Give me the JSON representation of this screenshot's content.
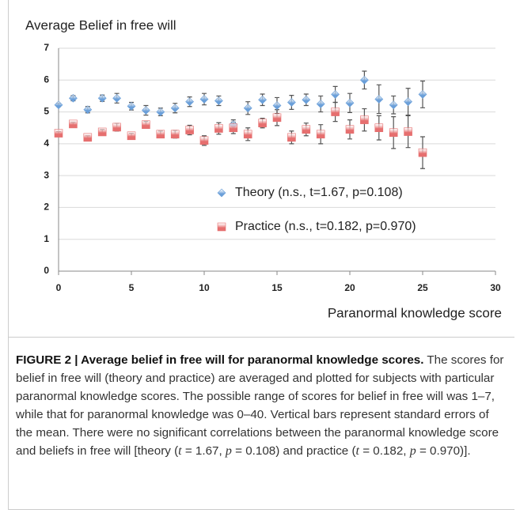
{
  "chart_data": {
    "type": "scatter",
    "ylabel": "Average Belief in free will",
    "xlabel": "Paranormal knowledge score",
    "x": [
      0,
      1,
      2,
      3,
      4,
      5,
      6,
      7,
      8,
      9,
      10,
      11,
      12,
      13,
      14,
      15,
      16,
      17,
      18,
      19,
      20,
      21,
      22,
      23,
      24,
      25
    ],
    "series": [
      {
        "name": "Theory (n.s., t=1.67, p=0.108)",
        "color": "#6a9fd9",
        "marker": "diamond",
        "values": [
          5.22,
          5.43,
          5.07,
          5.43,
          5.43,
          5.18,
          5.05,
          5.0,
          5.12,
          5.32,
          5.4,
          5.35,
          4.6,
          5.12,
          5.38,
          5.2,
          5.3,
          5.38,
          5.25,
          5.55,
          5.28,
          6.0,
          5.4,
          5.22,
          5.32,
          5.55
        ],
        "errors": [
          0.05,
          0.08,
          0.1,
          0.1,
          0.15,
          0.12,
          0.15,
          0.12,
          0.15,
          0.15,
          0.18,
          0.15,
          0.15,
          0.2,
          0.18,
          0.25,
          0.22,
          0.18,
          0.25,
          0.25,
          0.3,
          0.28,
          0.45,
          0.28,
          0.42,
          0.42
        ]
      },
      {
        "name": "Practice (n.s., t=0.182, p=0.970)",
        "color": "#e66f6f",
        "marker": "square",
        "values": [
          4.33,
          4.62,
          4.2,
          4.37,
          4.52,
          4.25,
          4.6,
          4.3,
          4.3,
          4.43,
          4.1,
          4.48,
          4.5,
          4.3,
          4.65,
          4.82,
          4.2,
          4.45,
          4.3,
          5.0,
          4.45,
          4.75,
          4.5,
          4.35,
          4.38,
          3.72
        ],
        "errors": [
          0.05,
          0.05,
          0.05,
          0.08,
          0.12,
          0.08,
          0.1,
          0.1,
          0.12,
          0.15,
          0.15,
          0.18,
          0.18,
          0.2,
          0.15,
          0.25,
          0.2,
          0.2,
          0.3,
          0.3,
          0.3,
          0.35,
          0.38,
          0.5,
          0.5,
          0.5
        ]
      }
    ],
    "xlim": [
      0,
      30
    ],
    "xticks": [
      0,
      5,
      10,
      15,
      20,
      25,
      30
    ],
    "ylim": [
      0,
      7
    ],
    "yticks": [
      0,
      1,
      2,
      3,
      4,
      5,
      6,
      7
    ],
    "grid": true
  },
  "caption": {
    "segments": [
      {
        "text": "FIGURE 2 | Average belief in free will for paranormal knowledge scores.",
        "style": "bold"
      },
      {
        "text": " The scores for belief in free will (theory and practice) are averaged and plotted for subjects with particular paranormal knowledge scores. The possible range of scores for belief in free will was 1–7, while that for paranormal knowledge was 0–40. Vertical bars represent standard errors of the mean. There were no significant correlations between the paranormal knowledge score and beliefs in free will [theory (",
        "style": "normal"
      },
      {
        "text": "t",
        "style": "italic"
      },
      {
        "text": " = 1.67, ",
        "style": "normal"
      },
      {
        "text": "p",
        "style": "italic"
      },
      {
        "text": " = 0.108) and practice (",
        "style": "normal"
      },
      {
        "text": "t",
        "style": "italic"
      },
      {
        "text": " = 0.182, ",
        "style": "normal"
      },
      {
        "text": "p",
        "style": "italic"
      },
      {
        "text": " = 0.970)].",
        "style": "normal"
      }
    ]
  }
}
